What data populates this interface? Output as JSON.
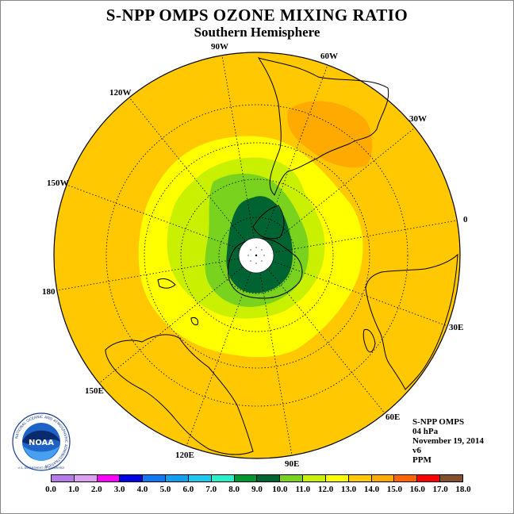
{
  "title": "S-NPP OMPS OZONE MIXING RATIO",
  "subtitle": "Southern Hemisphere",
  "longitude_labels": [
    "90W",
    "60W",
    "30W",
    "0",
    "30E",
    "60E",
    "90E",
    "120E",
    "150E",
    "180",
    "150W",
    "120W"
  ],
  "info": {
    "instrument": "S-NPP OMPS",
    "pressure_level": "04 hPa",
    "date": "November 19, 2014",
    "version": "v6",
    "units": "PPM"
  },
  "logo": {
    "text": "NOAA",
    "ring_text": "NATIONAL OCEANIC AND ATMOSPHERIC ADMINISTRATION",
    "bottom_text": "U.S. DEPARTMENT OF COMMERCE"
  },
  "colorbar": {
    "ticks": [
      "0.0",
      "1.0",
      "2.0",
      "3.0",
      "4.0",
      "5.0",
      "6.0",
      "7.0",
      "8.0",
      "9.0",
      "10.0",
      "11.0",
      "12.0",
      "13.0",
      "14.0",
      "15.0",
      "16.0",
      "17.0",
      "18.0"
    ],
    "colors": [
      "#b87ae8",
      "#dca0f0",
      "#ff00ff",
      "#0000e6",
      "#1478f0",
      "#14a0f0",
      "#1ec8f0",
      "#28f0c8",
      "#009632",
      "#006432",
      "#78d21e",
      "#c8f000",
      "#ffff00",
      "#ffc800",
      "#ffaa00",
      "#ff6400",
      "#ff0000",
      "#82502d"
    ]
  },
  "field": {
    "outer_level": "13.0-14.0",
    "ring_level": "12.0-13.0",
    "inner_level": "11.0-12.0",
    "core_level": "10.0-11.0",
    "vortex_level": "9.0-10.0",
    "local_max_level": "14.0-15.0"
  }
}
